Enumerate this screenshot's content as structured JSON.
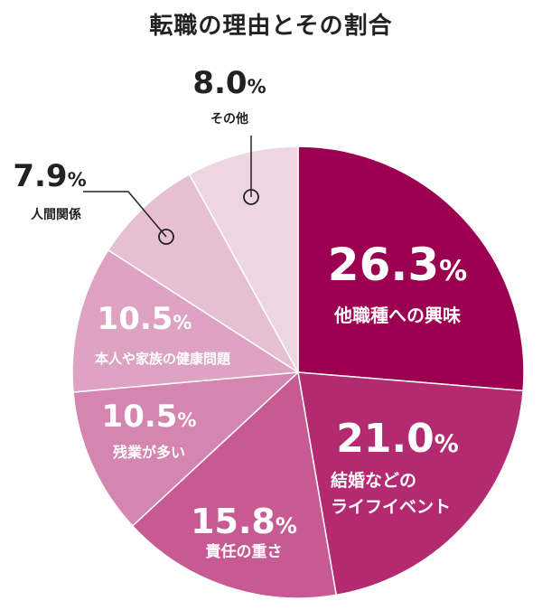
{
  "chart_data": {
    "type": "pie",
    "title": "転職の理由とその割合",
    "unit": "%",
    "start": "12 o'clock, clockwise",
    "slices": [
      {
        "name": "他職種への興味",
        "value": 26.3,
        "color": "#9c0050",
        "label_lines": [
          "他職種への興味"
        ],
        "inside": true
      },
      {
        "name": "結婚などのライフイベント",
        "value": 21.0,
        "color": "#b42a70",
        "label_lines": [
          "結婚などの",
          "ライフイベント"
        ],
        "inside": true
      },
      {
        "name": "責任の重さ",
        "value": 15.8,
        "color": "#c75a93",
        "label_lines": [
          "責任の重さ"
        ],
        "inside": true
      },
      {
        "name": "残業が多い",
        "value": 10.5,
        "color": "#d586b0",
        "label_lines": [
          "残業が多い"
        ],
        "inside": true
      },
      {
        "name": "本人や家族の健康問題",
        "value": 10.5,
        "color": "#dea2c2",
        "label_lines": [
          "本人や家族の健康問題"
        ],
        "inside": true
      },
      {
        "name": "人間関係",
        "value": 7.9,
        "color": "#e6bfd3",
        "label_lines": [
          "人間関係"
        ],
        "inside": false
      },
      {
        "name": "その他",
        "value": 8.0,
        "color": "#edd6e1",
        "label_lines": [
          "その他"
        ],
        "inside": false
      }
    ]
  }
}
